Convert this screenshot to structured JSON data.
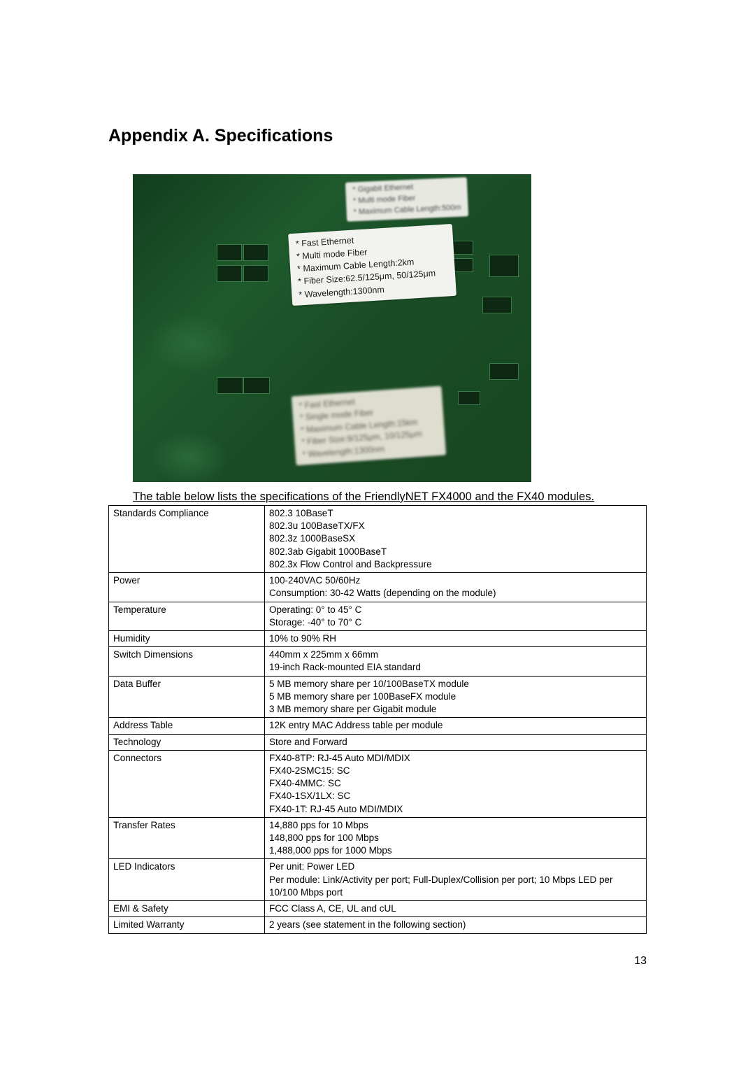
{
  "heading": "Appendix A. Specifications",
  "photo": {
    "top_label": [
      "Gigabit Ethernet",
      "Multi mode Fiber",
      "Maximum Cable Length:500m"
    ],
    "mid_label": [
      "Fast Ethernet",
      "Multi mode Fiber",
      "Maximum Cable Length:2km",
      "Fiber Size:62.5/125μm, 50/125μm",
      "Wavelength:1300nm"
    ],
    "bot_label": [
      "Fast Ethernet",
      "Single mode Fiber",
      "Maximum Cable Length:15km",
      "Fiber Size:9/125μm, 10/125μm",
      "Wavelength:1300nm"
    ]
  },
  "caption": "The table below lists the specifications of the FriendlyNET FX4000 and the FX40 modules.",
  "table": [
    {
      "k": "Standards Compliance",
      "v": [
        "802.3 10BaseT",
        "802.3u 100BaseTX/FX",
        "802.3z 1000BaseSX",
        "802.3ab Gigabit 1000BaseT",
        "802.3x Flow Control and Backpressure"
      ]
    },
    {
      "k": "Power",
      "v": [
        "100-240VAC 50/60Hz",
        "Consumption: 30-42 Watts (depending on the module)"
      ]
    },
    {
      "k": "Temperature",
      "v": [
        "Operating: 0° to 45° C",
        "Storage: -40° to 70° C"
      ]
    },
    {
      "k": "Humidity",
      "v": [
        "10% to 90% RH"
      ]
    },
    {
      "k": "Switch Dimensions",
      "v": [
        "440mm x 225mm x 66mm",
        "19-inch Rack-mounted EIA standard"
      ]
    },
    {
      "k": "Data Buffer",
      "v": [
        "5 MB memory share per 10/100BaseTX module",
        "5 MB memory share per 100BaseFX module",
        "3 MB memory share per Gigabit module"
      ]
    },
    {
      "k": "Address Table",
      "v": [
        "12K entry MAC Address table per module"
      ]
    },
    {
      "k": "Technology",
      "v": [
        "Store and Forward"
      ]
    },
    {
      "k": "Connectors",
      "v": [
        "FX40-8TP: RJ-45 Auto MDI/MDIX",
        "FX40-2SMC15: SC",
        "FX40-4MMC: SC",
        "FX40-1SX/1LX: SC",
        "FX40-1T: RJ-45 Auto MDI/MDIX"
      ]
    },
    {
      "k": "Transfer Rates",
      "v": [
        "14,880 pps for 10  Mbps",
        "148,800 pps for 100  Mbps",
        "1,488,000 pps for 1000  Mbps"
      ]
    },
    {
      "k": "LED Indicators",
      "v": [
        "Per unit: Power LED",
        "Per module: Link/Activity per port; Full-Duplex/Collision per port; 10 Mbps LED per 10/100 Mbps port"
      ]
    },
    {
      "k": "EMI & Safety",
      "v": [
        "FCC Class A, CE, UL and cUL"
      ]
    },
    {
      "k": "Limited Warranty",
      "v": [
        "2 years (see statement in the following section)"
      ]
    }
  ],
  "pagenum": "13"
}
